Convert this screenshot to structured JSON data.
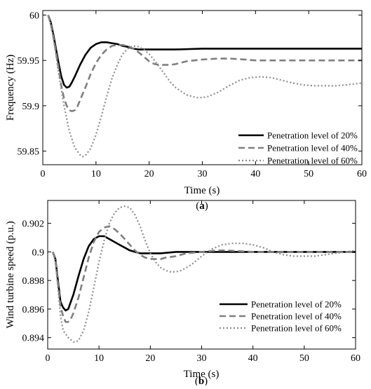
{
  "chart_data": [
    {
      "type": "line",
      "panel": "(a)",
      "caption_open": "(",
      "caption_letter": "a",
      "caption_close": ")",
      "xlabel": "Time (s)",
      "ylabel": "Frequency (Hz)",
      "xlim": [
        0,
        60
      ],
      "ylim": [
        59.835,
        60.005
      ],
      "xticks": [
        0,
        10,
        20,
        30,
        40,
        50,
        60
      ],
      "yticks": [
        59.85,
        59.9,
        59.95,
        60
      ],
      "ytick_labels": [
        "59.85",
        "59.9",
        "59.95",
        "60"
      ],
      "grid": false,
      "legend_position": "bottom-right",
      "series": [
        {
          "name": "Penetration level of 20%",
          "style": "solid",
          "color": "#000000",
          "x": [
            1,
            1.5,
            2,
            2.5,
            3,
            3.5,
            4,
            4.5,
            5,
            5.5,
            6,
            7,
            8,
            9,
            10,
            11,
            12,
            13,
            14,
            15,
            16,
            17,
            18,
            19,
            20,
            22,
            25,
            30,
            35,
            40,
            45,
            50,
            55,
            60
          ],
          "y": [
            60,
            59.992,
            59.978,
            59.962,
            59.946,
            59.932,
            59.923,
            59.92,
            59.921,
            59.926,
            59.932,
            59.945,
            59.956,
            59.964,
            59.968,
            59.97,
            59.97,
            59.969,
            59.968,
            59.966,
            59.965,
            59.963,
            59.962,
            59.962,
            59.962,
            59.962,
            59.962,
            59.963,
            59.963,
            59.963,
            59.963,
            59.963,
            59.963,
            59.963
          ]
        },
        {
          "name": "Penetration level of 40%",
          "style": "dashed",
          "color": "#7f7f7f",
          "x": [
            1,
            1.5,
            2,
            2.5,
            3,
            3.5,
            4,
            4.5,
            5,
            5.5,
            6,
            6.5,
            7,
            8,
            9,
            10,
            11,
            12,
            13,
            14,
            15,
            16,
            17,
            18,
            19,
            20,
            21,
            22,
            23,
            24,
            25,
            27,
            30,
            33,
            35,
            38,
            40,
            45,
            50,
            55,
            60
          ],
          "y": [
            60,
            59.99,
            59.975,
            59.958,
            59.94,
            59.922,
            59.908,
            59.9,
            59.895,
            59.894,
            59.895,
            59.899,
            59.906,
            59.92,
            59.935,
            59.947,
            59.956,
            59.962,
            59.966,
            59.967,
            59.967,
            59.966,
            59.963,
            59.959,
            59.954,
            59.949,
            59.946,
            59.945,
            59.945,
            59.945,
            59.946,
            59.949,
            59.951,
            59.952,
            59.952,
            59.951,
            59.95,
            59.95,
            59.95,
            59.95,
            59.95
          ]
        },
        {
          "name": "Penetration level of 60%",
          "style": "dotted",
          "color": "#8c8c8c",
          "x": [
            1,
            1.5,
            2,
            2.5,
            3,
            4,
            5,
            6,
            7,
            7.5,
            8,
            9,
            10,
            11,
            12,
            13,
            14,
            15,
            16,
            17,
            18,
            19,
            20,
            21,
            22,
            23,
            24,
            25,
            27,
            29,
            30,
            31,
            33,
            35,
            37,
            39,
            41,
            43,
            45,
            47,
            49,
            51,
            53,
            55,
            57,
            60
          ],
          "y": [
            60,
            59.99,
            59.975,
            59.955,
            59.935,
            59.9,
            59.872,
            59.854,
            59.846,
            59.844,
            59.845,
            59.853,
            59.868,
            59.888,
            59.91,
            59.93,
            59.945,
            59.957,
            59.963,
            59.966,
            59.965,
            59.962,
            59.957,
            59.95,
            59.942,
            59.934,
            59.926,
            59.92,
            59.912,
            59.909,
            59.909,
            59.91,
            59.915,
            59.922,
            59.928,
            59.931,
            59.932,
            59.931,
            59.928,
            59.925,
            59.923,
            59.922,
            59.922,
            59.922,
            59.923,
            59.925
          ]
        }
      ]
    },
    {
      "type": "line",
      "panel": "(b)",
      "caption_open": "(",
      "caption_letter": "b",
      "caption_close": ")",
      "xlabel": "Time (s)",
      "ylabel": "Wind turbine speed (p.u.)",
      "xlim": [
        0,
        60
      ],
      "ylim": [
        0.8932,
        0.9036
      ],
      "xticks": [
        0,
        10,
        20,
        30,
        40,
        50,
        60
      ],
      "yticks": [
        0.894,
        0.896,
        0.898,
        0.9,
        0.902
      ],
      "ytick_labels": [
        "0.894",
        "0.896",
        "0.898",
        "0.9",
        "0.902"
      ],
      "grid": false,
      "legend_position": "bottom-right",
      "series": [
        {
          "name": "Penetration level of 20%",
          "style": "solid",
          "color": "#000000",
          "x": [
            1,
            1.5,
            2,
            2.5,
            3,
            3.5,
            4,
            4.5,
            5,
            6,
            7,
            8,
            9,
            10,
            11,
            12,
            13,
            14,
            15,
            16,
            17,
            18,
            19,
            20,
            22,
            25,
            30,
            35,
            40,
            45,
            50,
            55,
            60
          ],
          "y": [
            0.9,
            0.8995,
            0.898,
            0.8965,
            0.8961,
            0.8959,
            0.896,
            0.8965,
            0.897,
            0.8983,
            0.8995,
            0.9004,
            0.9009,
            0.9011,
            0.9011,
            0.9009,
            0.9007,
            0.9005,
            0.9003,
            0.9001,
            0.9,
            0.8999,
            0.8999,
            0.8999,
            0.8999,
            0.9,
            0.9,
            0.9,
            0.9,
            0.9,
            0.9,
            0.9,
            0.9
          ]
        },
        {
          "name": "Penetration level of 40%",
          "style": "dashed",
          "color": "#7f7f7f",
          "x": [
            1,
            1.5,
            2,
            2.5,
            3,
            3.5,
            4,
            4.5,
            5,
            6,
            7,
            8,
            9,
            10,
            11,
            12,
            13,
            14,
            15,
            16,
            17,
            18,
            19,
            20,
            21,
            22,
            23,
            25,
            27,
            30,
            33,
            35,
            40,
            45,
            50,
            55,
            60
          ],
          "y": [
            0.9,
            0.8994,
            0.8978,
            0.8962,
            0.8955,
            0.8951,
            0.8951,
            0.8953,
            0.8957,
            0.8968,
            0.8982,
            0.8996,
            0.9007,
            0.9014,
            0.9017,
            0.9018,
            0.9016,
            0.9013,
            0.9009,
            0.9005,
            0.9001,
            0.8998,
            0.8996,
            0.8995,
            0.8995,
            0.8995,
            0.8996,
            0.8997,
            0.8999,
            0.9,
            0.9001,
            0.9001,
            0.9,
            0.9,
            0.9,
            0.9,
            0.9
          ]
        },
        {
          "name": "Penetration level of 60%",
          "style": "dotted",
          "color": "#8c8c8c",
          "x": [
            1,
            1.5,
            2,
            2.5,
            3,
            4,
            5,
            5.5,
            6,
            7,
            8,
            9,
            10,
            11,
            12,
            13,
            14,
            15,
            16,
            17,
            18,
            19,
            20,
            21,
            22,
            23,
            24,
            25,
            26,
            27,
            28,
            29,
            30,
            32,
            34,
            36,
            38,
            40,
            42,
            44,
            46,
            48,
            50,
            52,
            54,
            56,
            58,
            60
          ],
          "y": [
            0.9,
            0.8993,
            0.8975,
            0.8955,
            0.8945,
            0.894,
            0.8937,
            0.8937,
            0.8938,
            0.8945,
            0.8958,
            0.8975,
            0.8993,
            0.9008,
            0.902,
            0.9027,
            0.9031,
            0.9032,
            0.9031,
            0.9026,
            0.9018,
            0.9008,
            0.8999,
            0.8993,
            0.8989,
            0.8987,
            0.8986,
            0.8986,
            0.8987,
            0.8989,
            0.8991,
            0.8994,
            0.8997,
            0.9002,
            0.9005,
            0.9006,
            0.9006,
            0.9005,
            0.9003,
            0.9,
            0.8998,
            0.8997,
            0.8997,
            0.8997,
            0.8998,
            0.8999,
            0.9,
            0.9001
          ]
        }
      ]
    }
  ]
}
